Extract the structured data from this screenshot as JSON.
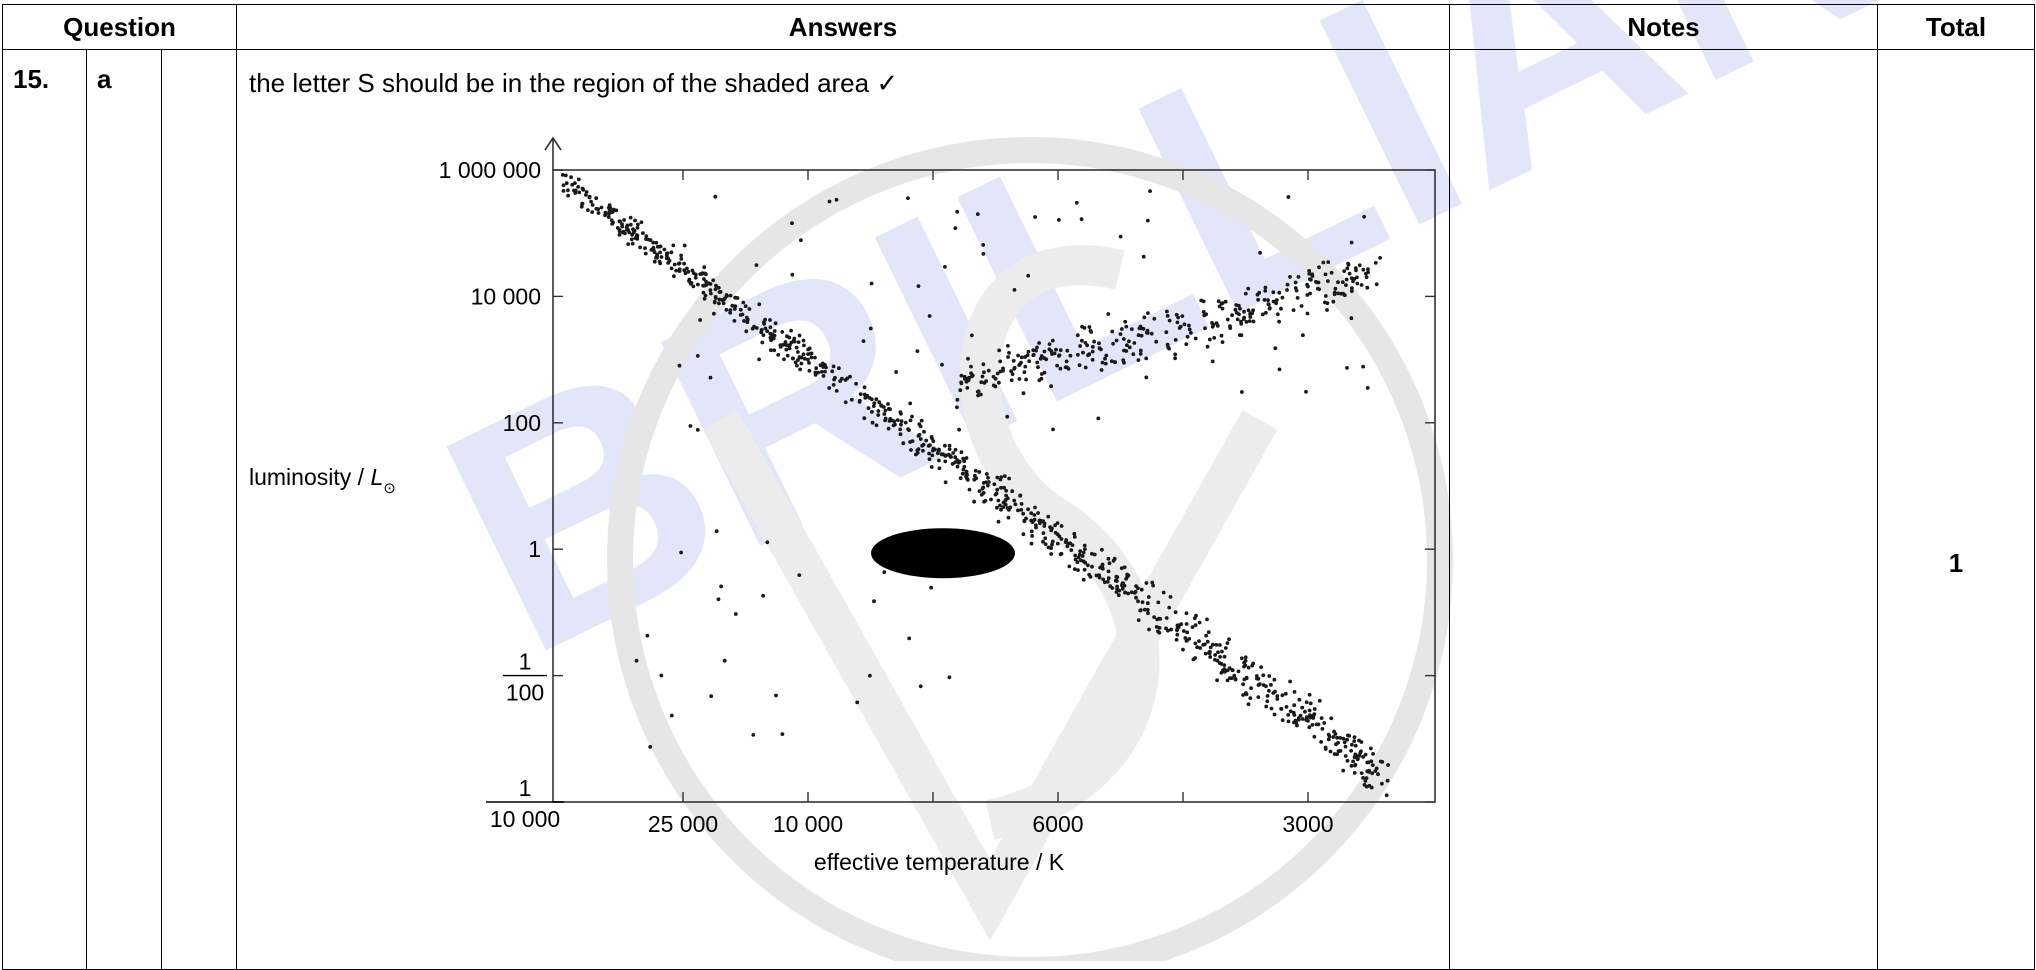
{
  "table": {
    "headers": {
      "question": "Question",
      "answers": "Answers",
      "notes": "Notes",
      "total": "Total"
    },
    "row": {
      "number": "15.",
      "part": "a",
      "answer_text": "the letter S should be in the region of the shaded area ✓",
      "notes": "",
      "total": "1"
    }
  },
  "watermark": {
    "text": "BRILLIANT",
    "color": "#d6dcf5"
  },
  "chart_data": {
    "type": "scatter",
    "xlabel": "effective temperature / K",
    "ylabel": "luminosity / L",
    "ylabel_subscript": "⊙",
    "x_scale": "log, reversed",
    "y_scale": "log",
    "x_tick_labels": [
      "25 000",
      "10 000",
      "6000",
      "3000"
    ],
    "y_tick_labels": [
      {
        "value": 1000000,
        "text": "1 000 000"
      },
      {
        "value": 10000,
        "text": "10 000"
      },
      {
        "value": 100,
        "text": "100"
      },
      {
        "value": 1,
        "text": "1"
      },
      {
        "value": 0.01,
        "numerator": "1",
        "denominator": "100"
      },
      {
        "value": 0.0001,
        "numerator": "1",
        "denominator": "10 000"
      }
    ],
    "ylim": [
      0.0001,
      1000000
    ],
    "grid": false,
    "highlight": {
      "shape": "ellipse",
      "temperature_K": 6000,
      "luminosity": 1,
      "fill": "#000000"
    },
    "dot_color": "#1a1a1a"
  }
}
